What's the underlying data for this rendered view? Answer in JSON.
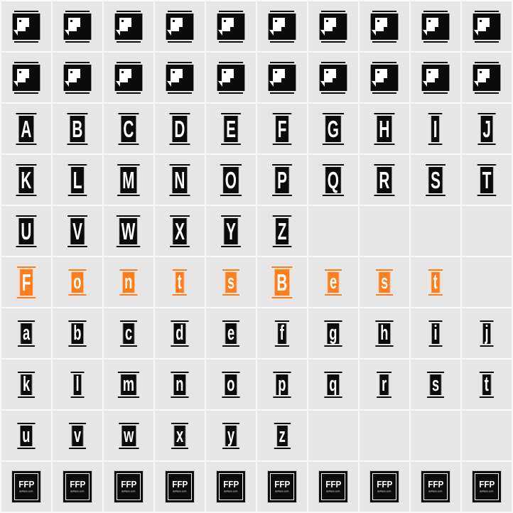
{
  "page": {
    "description": "font glyph character map preview grid",
    "sample_text": "FontsBest"
  },
  "colors": {
    "cell_bg": "#e6e6e6",
    "grid_line": "#f8f8f8",
    "glyph_dark": "#0b0b0b",
    "glyph_light": "#ffffff",
    "accent_orange": "#ff7d1a"
  },
  "grid": {
    "columns": 10,
    "rows": [
      {
        "type": "notdef",
        "count": 10
      },
      {
        "type": "notdef",
        "count": 10
      },
      {
        "type": "glyphs",
        "case": "upper",
        "chars": [
          "A",
          "B",
          "C",
          "D",
          "E",
          "F",
          "G",
          "H",
          "I",
          "J"
        ]
      },
      {
        "type": "glyphs",
        "case": "upper",
        "chars": [
          "K",
          "L",
          "M",
          "N",
          "O",
          "P",
          "Q",
          "R",
          "S",
          "T"
        ]
      },
      {
        "type": "glyphs",
        "case": "upper",
        "chars": [
          "U",
          "V",
          "W",
          "X",
          "Y",
          "Z"
        ]
      },
      {
        "type": "glyphs",
        "case": "mixed",
        "color": "orange",
        "chars": [
          "F",
          "o",
          "n",
          "t",
          "s",
          "B",
          "e",
          "s",
          "t"
        ]
      },
      {
        "type": "glyphs",
        "case": "lower",
        "chars": [
          "a",
          "b",
          "c",
          "d",
          "e",
          "f",
          "g",
          "h",
          "i",
          "j"
        ]
      },
      {
        "type": "glyphs",
        "case": "lower",
        "chars": [
          "k",
          "l",
          "m",
          "n",
          "o",
          "p",
          "q",
          "r",
          "s",
          "t"
        ]
      },
      {
        "type": "glyphs",
        "case": "lower",
        "chars": [
          "u",
          "v",
          "w",
          "x",
          "y",
          "z"
        ]
      },
      {
        "type": "logos",
        "count": 10,
        "logo": {
          "title": "FFP",
          "subtitle": "defharo.com"
        }
      }
    ]
  }
}
